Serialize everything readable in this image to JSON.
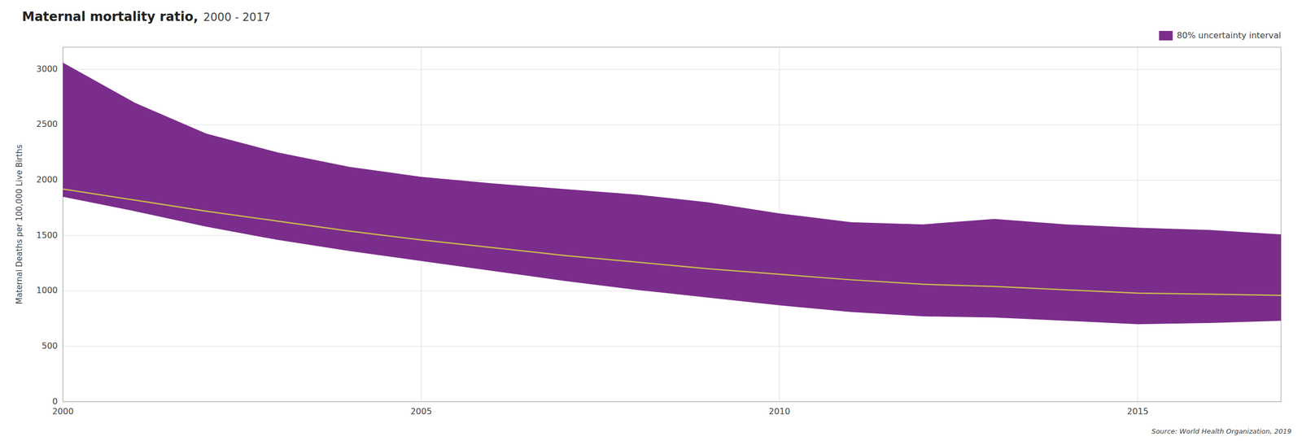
{
  "chart_data": {
    "type": "line",
    "title": "Maternal mortality ratio,",
    "subtitle": "2000 - 2017",
    "ylabel": "Maternal Deaths per 100,000 Live Births",
    "annotations": [
      "Source: World Health Organization, 2019"
    ],
    "x": [
      2000,
      2001,
      2002,
      2003,
      2004,
      2005,
      2006,
      2007,
      2008,
      2009,
      2010,
      2011,
      2012,
      2013,
      2014,
      2015,
      2016,
      2017
    ],
    "series": [
      {
        "type": "band",
        "name": "80% uncertainty interval",
        "color": "#7b2d8b",
        "upper": [
          3060,
          2700,
          2420,
          2250,
          2120,
          2030,
          1970,
          1920,
          1870,
          1800,
          1700,
          1620,
          1600,
          1650,
          1600,
          1570,
          1550,
          1510
        ],
        "lower": [
          1850,
          1720,
          1580,
          1460,
          1360,
          1270,
          1180,
          1090,
          1010,
          940,
          870,
          810,
          770,
          760,
          730,
          700,
          710,
          730
        ]
      },
      {
        "type": "line",
        "color": "#c8b850",
        "values": [
          1920,
          1820,
          1720,
          1630,
          1540,
          1460,
          1390,
          1320,
          1260,
          1200,
          1150,
          1100,
          1060,
          1040,
          1010,
          980,
          970,
          960
        ]
      }
    ],
    "xlim": [
      2000,
      2017
    ],
    "xticks": [
      2000,
      2005,
      2010,
      2015
    ],
    "ylim": [
      0,
      3200
    ],
    "yticks": [
      0,
      500,
      1000,
      1500,
      2000,
      2500,
      3000
    ],
    "grid": true,
    "legend": "top-right"
  }
}
